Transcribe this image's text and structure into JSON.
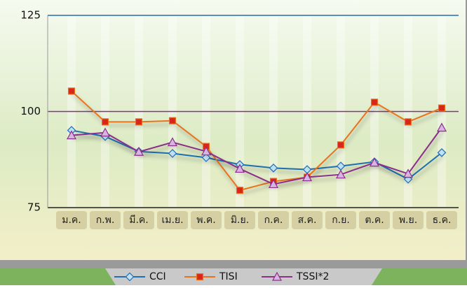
{
  "chart_data": {
    "type": "line",
    "categories": [
      "ม.ค.",
      "ก.พ.",
      "มี.ค.",
      "เม.ย.",
      "พ.ค.",
      "มิ.ย.",
      "ก.ค.",
      "ส.ค.",
      "ก.ย.",
      "ต.ค.",
      "พ.ย.",
      "ธ.ค."
    ],
    "series": [
      {
        "name": "CCI",
        "color": "#1f6fb2",
        "marker": "diamond",
        "marker_fill": "#bfe0f5",
        "values": [
          95.1,
          93.5,
          89.6,
          89.1,
          88,
          86.2,
          85.3,
          84.9,
          85.8,
          86.9,
          82.4,
          89.3
        ]
      },
      {
        "name": "TISI",
        "color": "#e8731f",
        "marker": "square",
        "marker_fill": "#d8261b",
        "values": [
          105.3,
          97.3,
          97.3,
          97.6,
          90.9,
          79.5,
          81.8,
          82.9,
          91.3,
          102.4,
          97.3,
          100.9
        ]
      },
      {
        "name": "TSSI*2",
        "color": "#8b2f8b",
        "marker": "triangle",
        "marker_fill": "#d8b4e2",
        "values": [
          93.8,
          94.5,
          89.5,
          92,
          89.6,
          85.1,
          81.1,
          82.9,
          83.6,
          86.7,
          83.8,
          95.8
        ]
      }
    ],
    "ylim": [
      75,
      125
    ],
    "yticks": [
      75,
      100,
      125
    ],
    "grid_colors": [
      "#222222",
      "#8b2f8b",
      "#1f6fb2"
    ],
    "legend": "bottom"
  }
}
